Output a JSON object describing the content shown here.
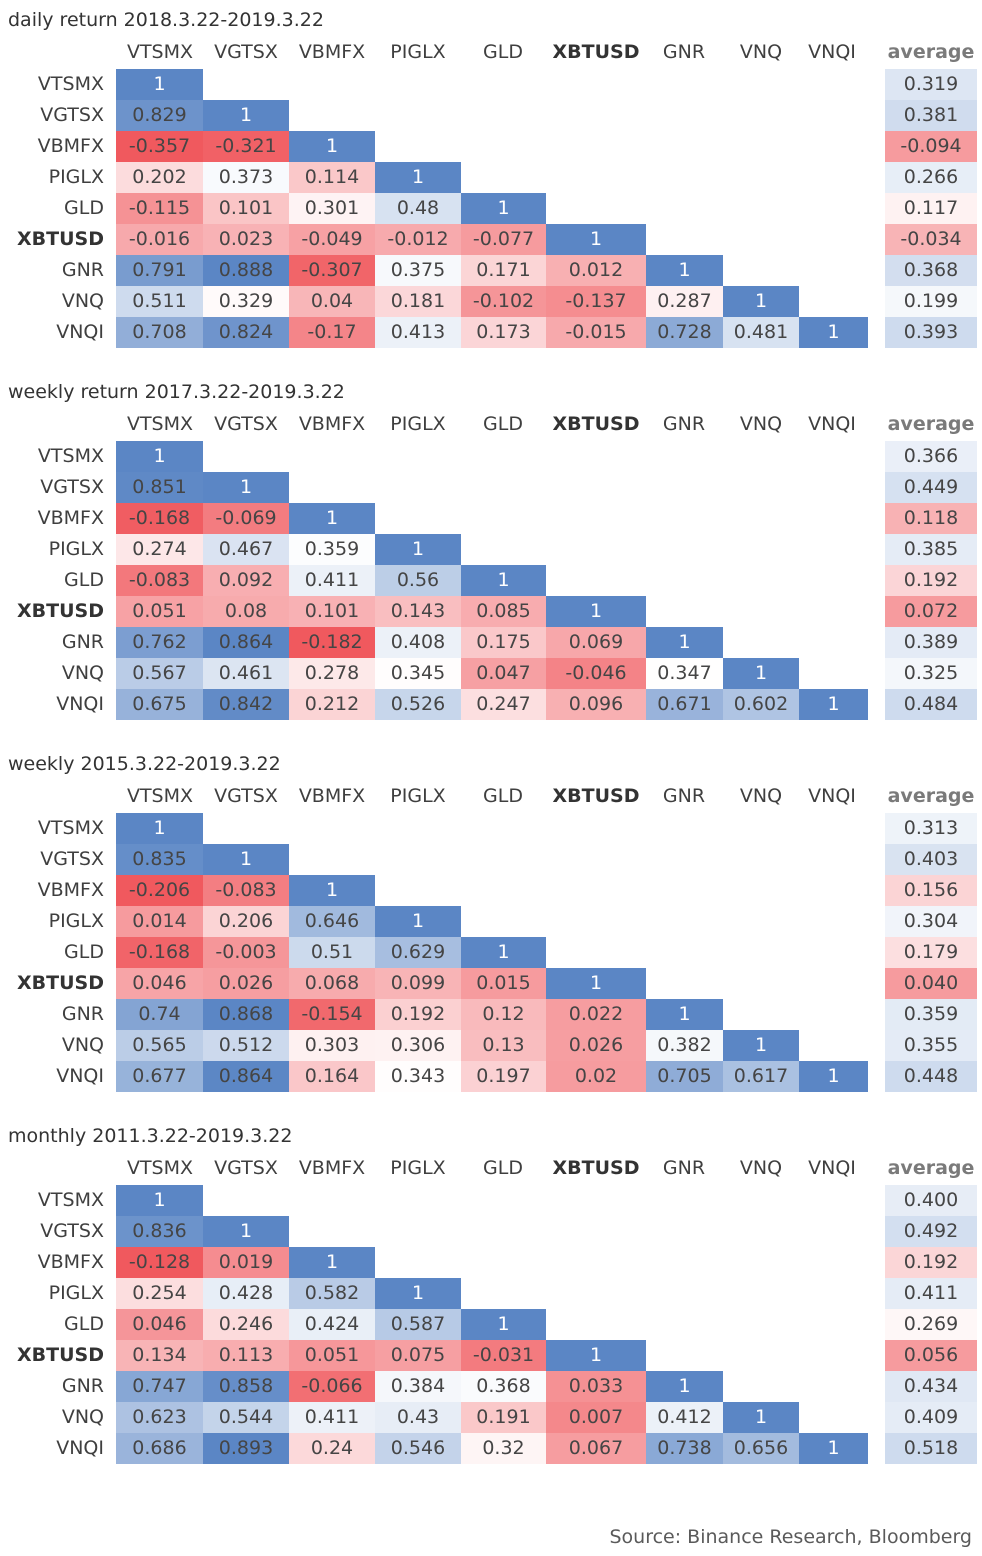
{
  "colors": {
    "positive": "#5B86C5",
    "negative": "#F0595E",
    "neutral": "#FFFFFF",
    "diagonal": "#5B86C5"
  },
  "chart_data": [
    {
      "type": "heatmap",
      "title": "daily return 2018.3.22-2019.3.22",
      "columns": [
        "VTSMX",
        "VGTSX",
        "VBMFX",
        "PIGLX",
        "GLD",
        "XBTUSD",
        "GNR",
        "VNQ",
        "VNQI"
      ],
      "rows": [
        "VTSMX",
        "VGTSX",
        "VBMFX",
        "PIGLX",
        "GLD",
        "XBTUSD",
        "GNR",
        "VNQ",
        "VNQI"
      ],
      "matrix": [
        [
          "1"
        ],
        [
          "0.829",
          "1"
        ],
        [
          "-0.357",
          "-0.321",
          "1"
        ],
        [
          "0.202",
          "0.373",
          "0.114",
          "1"
        ],
        [
          "-0.115",
          "0.101",
          "0.301",
          "0.48",
          "1"
        ],
        [
          "-0.016",
          "0.023",
          "-0.049",
          "-0.012",
          "-0.077",
          "1"
        ],
        [
          "0.791",
          "0.888",
          "-0.307",
          "0.375",
          "0.171",
          "0.012",
          "1"
        ],
        [
          "0.511",
          "0.329",
          "0.04",
          "0.181",
          "-0.102",
          "-0.137",
          "0.287",
          "1"
        ],
        [
          "0.708",
          "0.824",
          "-0.17",
          "0.413",
          "0.173",
          "-0.015",
          "0.728",
          "0.481",
          "1"
        ]
      ],
      "average_label": "average",
      "average": [
        "0.319",
        "0.381",
        "-0.094",
        "0.266",
        "0.117",
        "-0.034",
        "0.368",
        "0.199",
        "0.393"
      ]
    },
    {
      "type": "heatmap",
      "title": "weekly return 2017.3.22-2019.3.22",
      "columns": [
        "VTSMX",
        "VGTSX",
        "VBMFX",
        "PIGLX",
        "GLD",
        "XBTUSD",
        "GNR",
        "VNQ",
        "VNQI"
      ],
      "rows": [
        "VTSMX",
        "VGTSX",
        "VBMFX",
        "PIGLX",
        "GLD",
        "XBTUSD",
        "GNR",
        "VNQ",
        "VNQI"
      ],
      "matrix": [
        [
          "1"
        ],
        [
          "0.851",
          "1"
        ],
        [
          "-0.168",
          "-0.069",
          "1"
        ],
        [
          "0.274",
          "0.467",
          "0.359",
          "1"
        ],
        [
          "-0.083",
          "0.092",
          "0.411",
          "0.56",
          "1"
        ],
        [
          "0.051",
          "0.08",
          "0.101",
          "0.143",
          "0.085",
          "1"
        ],
        [
          "0.762",
          "0.864",
          "-0.182",
          "0.408",
          "0.175",
          "0.069",
          "1"
        ],
        [
          "0.567",
          "0.461",
          "0.278",
          "0.345",
          "0.047",
          "-0.046",
          "0.347",
          "1"
        ],
        [
          "0.675",
          "0.842",
          "0.212",
          "0.526",
          "0.247",
          "0.096",
          "0.671",
          "0.602",
          "1"
        ]
      ],
      "average_label": "average",
      "average": [
        "0.366",
        "0.449",
        "0.118",
        "0.385",
        "0.192",
        "0.072",
        "0.389",
        "0.325",
        "0.484"
      ]
    },
    {
      "type": "heatmap",
      "title": "weekly 2015.3.22-2019.3.22",
      "columns": [
        "VTSMX",
        "VGTSX",
        "VBMFX",
        "PIGLX",
        "GLD",
        "XBTUSD",
        "GNR",
        "VNQ",
        "VNQI"
      ],
      "rows": [
        "VTSMX",
        "VGTSX",
        "VBMFX",
        "PIGLX",
        "GLD",
        "XBTUSD",
        "GNR",
        "VNQ",
        "VNQI"
      ],
      "matrix": [
        [
          "1"
        ],
        [
          "0.835",
          "1"
        ],
        [
          "-0.206",
          "-0.083",
          "1"
        ],
        [
          "0.014",
          "0.206",
          "0.646",
          "1"
        ],
        [
          "-0.168",
          "-0.003",
          "0.51",
          "0.629",
          "1"
        ],
        [
          "0.046",
          "0.026",
          "0.068",
          "0.099",
          "0.015",
          "1"
        ],
        [
          "0.74",
          "0.868",
          "-0.154",
          "0.192",
          "0.12",
          "0.022",
          "1"
        ],
        [
          "0.565",
          "0.512",
          "0.303",
          "0.306",
          "0.13",
          "0.026",
          "0.382",
          "1"
        ],
        [
          "0.677",
          "0.864",
          "0.164",
          "0.343",
          "0.197",
          "0.02",
          "0.705",
          "0.617",
          "1"
        ]
      ],
      "average_label": "average",
      "average": [
        "0.313",
        "0.403",
        "0.156",
        "0.304",
        "0.179",
        "0.040",
        "0.359",
        "0.355",
        "0.448"
      ]
    },
    {
      "type": "heatmap",
      "title": "monthly 2011.3.22-2019.3.22",
      "columns": [
        "VTSMX",
        "VGTSX",
        "VBMFX",
        "PIGLX",
        "GLD",
        "XBTUSD",
        "GNR",
        "VNQ",
        "VNQI"
      ],
      "rows": [
        "VTSMX",
        "VGTSX",
        "VBMFX",
        "PIGLX",
        "GLD",
        "XBTUSD",
        "GNR",
        "VNQ",
        "VNQI"
      ],
      "matrix": [
        [
          "1"
        ],
        [
          "0.836",
          "1"
        ],
        [
          "-0.128",
          "0.019",
          "1"
        ],
        [
          "0.254",
          "0.428",
          "0.582",
          "1"
        ],
        [
          "0.046",
          "0.246",
          "0.424",
          "0.587",
          "1"
        ],
        [
          "0.134",
          "0.113",
          "0.051",
          "0.075",
          "-0.031",
          "1"
        ],
        [
          "0.747",
          "0.858",
          "-0.066",
          "0.384",
          "0.368",
          "0.033",
          "1"
        ],
        [
          "0.623",
          "0.544",
          "0.411",
          "0.43",
          "0.191",
          "0.007",
          "0.412",
          "1"
        ],
        [
          "0.686",
          "0.893",
          "0.24",
          "0.546",
          "0.32",
          "0.067",
          "0.738",
          "0.656",
          "1"
        ]
      ],
      "average_label": "average",
      "average": [
        "0.400",
        "0.492",
        "0.192",
        "0.411",
        "0.269",
        "0.056",
        "0.434",
        "0.409",
        "0.518"
      ]
    }
  ],
  "source": "Source: Binance Research, Bloomberg"
}
